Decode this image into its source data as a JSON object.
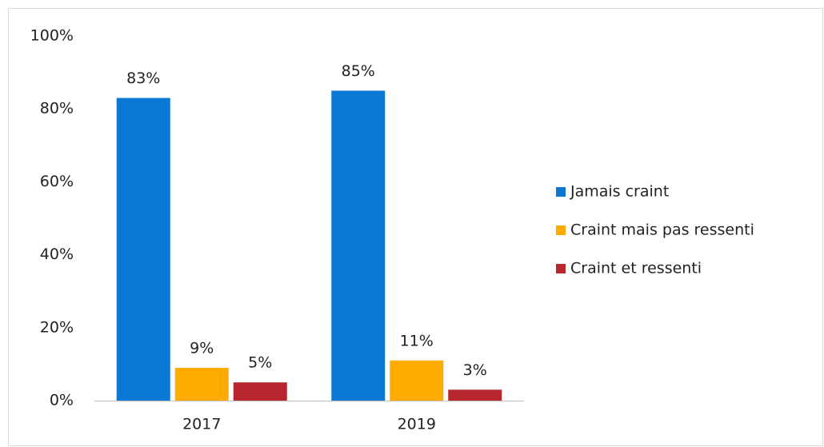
{
  "chart_data": {
    "type": "bar",
    "categories": [
      "2017",
      "2019"
    ],
    "series": [
      {
        "name": "Jamais craint",
        "color": "#0b78d6",
        "values": [
          83,
          85
        ],
        "value_labels": [
          "83%",
          "85%"
        ]
      },
      {
        "name": "Craint mais pas ressenti",
        "color": "#ffab00",
        "values": [
          9,
          11
        ],
        "value_labels": [
          "9%",
          "11%"
        ]
      },
      {
        "name": "Craint et ressenti",
        "color": "#b8262e",
        "values": [
          5,
          3
        ],
        "value_labels": [
          "5%",
          "3%"
        ]
      }
    ],
    "ylim": [
      0,
      100
    ],
    "yticks": [
      {
        "value": 0,
        "label": "0%"
      },
      {
        "value": 20,
        "label": "20%"
      },
      {
        "value": 40,
        "label": "40%"
      },
      {
        "value": 60,
        "label": "60%"
      },
      {
        "value": 80,
        "label": "80%"
      },
      {
        "value": 100,
        "label": "100%"
      }
    ],
    "grid": false,
    "legend": "right"
  }
}
